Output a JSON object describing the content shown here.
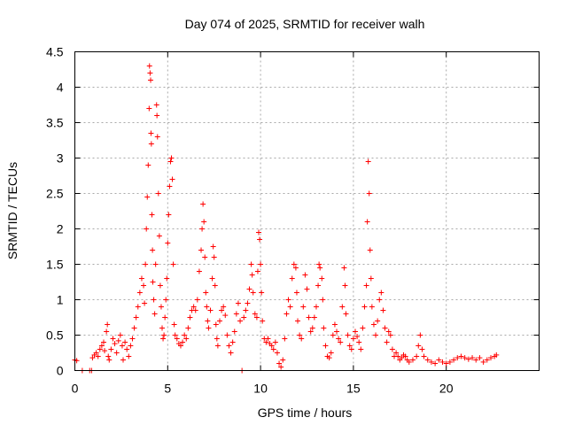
{
  "chart_data": {
    "type": "scatter",
    "title": "Day 074 of 2025, SRMTID for receiver walh",
    "xlabel": "GPS time / hours",
    "ylabel": "SRMTID / TECUs",
    "xlim": [
      0,
      25
    ],
    "ylim": [
      0,
      4.5
    ],
    "xticks": [
      0,
      5,
      10,
      15,
      20
    ],
    "xtick_labels": [
      "0",
      "5",
      "10",
      "15",
      "20"
    ],
    "yticks": [
      0,
      0.5,
      1,
      1.5,
      2,
      2.5,
      3,
      3.5,
      4,
      4.5
    ],
    "ytick_labels": [
      "0",
      "0.5",
      "1",
      "1.5",
      "2",
      "2.5",
      "3",
      "3.5",
      "4",
      "4.5"
    ],
    "grid": true,
    "marker": "+",
    "color": "#ff0000",
    "series": [
      {
        "name": "SRMTID",
        "points": [
          [
            0.0,
            0.15
          ],
          [
            0.1,
            0.14
          ],
          [
            0.4,
            0.0
          ],
          [
            0.8,
            0.0
          ],
          [
            0.9,
            0.0
          ],
          [
            0.95,
            0.18
          ],
          [
            1.05,
            0.22
          ],
          [
            1.15,
            0.25
          ],
          [
            1.25,
            0.2
          ],
          [
            1.35,
            0.3
          ],
          [
            1.45,
            0.35
          ],
          [
            1.55,
            0.4
          ],
          [
            1.6,
            0.28
          ],
          [
            1.7,
            0.55
          ],
          [
            1.75,
            0.65
          ],
          [
            1.8,
            0.2
          ],
          [
            1.85,
            0.15
          ],
          [
            1.95,
            0.3
          ],
          [
            2.05,
            0.45
          ],
          [
            2.15,
            0.38
          ],
          [
            2.25,
            0.25
          ],
          [
            2.35,
            0.42
          ],
          [
            2.45,
            0.5
          ],
          [
            2.55,
            0.35
          ],
          [
            2.6,
            0.15
          ],
          [
            2.7,
            0.4
          ],
          [
            2.8,
            0.3
          ],
          [
            2.9,
            0.2
          ],
          [
            3.0,
            0.35
          ],
          [
            3.1,
            0.45
          ],
          [
            3.2,
            0.6
          ],
          [
            3.3,
            0.75
          ],
          [
            3.4,
            0.9
          ],
          [
            3.5,
            1.1
          ],
          [
            3.6,
            1.3
          ],
          [
            3.7,
            1.2
          ],
          [
            3.75,
            0.95
          ],
          [
            3.8,
            1.5
          ],
          [
            3.85,
            2.0
          ],
          [
            3.9,
            2.45
          ],
          [
            3.95,
            2.9
          ],
          [
            4.0,
            3.7
          ],
          [
            4.02,
            4.3
          ],
          [
            4.05,
            4.2
          ],
          [
            4.08,
            4.1
          ],
          [
            4.1,
            3.35
          ],
          [
            4.12,
            3.2
          ],
          [
            4.15,
            2.2
          ],
          [
            4.18,
            1.7
          ],
          [
            4.2,
            1.25
          ],
          [
            4.25,
            1.0
          ],
          [
            4.3,
            0.8
          ],
          [
            4.35,
            1.5
          ],
          [
            4.4,
            3.75
          ],
          [
            4.42,
            3.6
          ],
          [
            4.45,
            3.3
          ],
          [
            4.5,
            2.5
          ],
          [
            4.55,
            1.9
          ],
          [
            4.6,
            1.2
          ],
          [
            4.65,
            0.9
          ],
          [
            4.7,
            0.6
          ],
          [
            4.75,
            0.45
          ],
          [
            4.8,
            0.5
          ],
          [
            4.85,
            0.75
          ],
          [
            4.9,
            1.0
          ],
          [
            4.95,
            1.3
          ],
          [
            5.0,
            1.8
          ],
          [
            5.05,
            2.2
          ],
          [
            5.1,
            2.6
          ],
          [
            5.15,
            2.95
          ],
          [
            5.2,
            3.0
          ],
          [
            5.25,
            2.7
          ],
          [
            5.3,
            1.5
          ],
          [
            5.35,
            0.65
          ],
          [
            5.4,
            0.5
          ],
          [
            5.5,
            0.45
          ],
          [
            5.6,
            0.38
          ],
          [
            5.7,
            0.35
          ],
          [
            5.8,
            0.4
          ],
          [
            5.9,
            0.5
          ],
          [
            6.0,
            0.45
          ],
          [
            6.1,
            0.6
          ],
          [
            6.2,
            0.75
          ],
          [
            6.3,
            0.85
          ],
          [
            6.4,
            0.9
          ],
          [
            6.5,
            0.85
          ],
          [
            6.6,
            1.0
          ],
          [
            6.7,
            1.4
          ],
          [
            6.8,
            1.7
          ],
          [
            6.85,
            2.0
          ],
          [
            6.9,
            2.35
          ],
          [
            6.95,
            2.1
          ],
          [
            7.0,
            1.6
          ],
          [
            7.05,
            1.1
          ],
          [
            7.1,
            0.9
          ],
          [
            7.15,
            0.7
          ],
          [
            7.2,
            0.6
          ],
          [
            7.3,
            0.85
          ],
          [
            7.4,
            1.3
          ],
          [
            7.45,
            1.75
          ],
          [
            7.5,
            1.6
          ],
          [
            7.55,
            1.2
          ],
          [
            7.6,
            0.65
          ],
          [
            7.65,
            0.45
          ],
          [
            7.7,
            0.35
          ],
          [
            7.8,
            0.7
          ],
          [
            7.9,
            0.85
          ],
          [
            8.0,
            0.9
          ],
          [
            8.1,
            0.78
          ],
          [
            8.2,
            0.5
          ],
          [
            8.3,
            0.35
          ],
          [
            8.4,
            0.25
          ],
          [
            8.5,
            0.4
          ],
          [
            8.6,
            0.55
          ],
          [
            8.7,
            0.8
          ],
          [
            8.8,
            0.95
          ],
          [
            8.9,
            0.7
          ],
          [
            9.0,
            0.0
          ],
          [
            9.1,
            0.75
          ],
          [
            9.2,
            0.85
          ],
          [
            9.3,
            0.95
          ],
          [
            9.4,
            1.15
          ],
          [
            9.5,
            1.5
          ],
          [
            9.55,
            1.35
          ],
          [
            9.6,
            1.1
          ],
          [
            9.7,
            0.8
          ],
          [
            9.8,
            0.75
          ],
          [
            9.85,
            1.4
          ],
          [
            9.9,
            1.95
          ],
          [
            9.95,
            1.85
          ],
          [
            10.0,
            1.5
          ],
          [
            10.05,
            1.1
          ],
          [
            10.1,
            0.7
          ],
          [
            10.2,
            0.45
          ],
          [
            10.3,
            0.4
          ],
          [
            10.4,
            0.45
          ],
          [
            10.5,
            0.38
          ],
          [
            10.6,
            0.35
          ],
          [
            10.7,
            0.3
          ],
          [
            10.8,
            0.4
          ],
          [
            10.9,
            0.25
          ],
          [
            11.0,
            0.1
          ],
          [
            11.1,
            0.05
          ],
          [
            11.2,
            0.15
          ],
          [
            11.3,
            0.45
          ],
          [
            11.4,
            0.8
          ],
          [
            11.5,
            1.0
          ],
          [
            11.6,
            0.9
          ],
          [
            11.7,
            1.3
          ],
          [
            11.8,
            1.5
          ],
          [
            11.9,
            1.45
          ],
          [
            11.95,
            1.1
          ],
          [
            12.0,
            0.7
          ],
          [
            12.1,
            0.5
          ],
          [
            12.2,
            0.45
          ],
          [
            12.3,
            0.9
          ],
          [
            12.4,
            1.35
          ],
          [
            12.5,
            1.15
          ],
          [
            12.6,
            0.75
          ],
          [
            12.7,
            0.55
          ],
          [
            12.8,
            0.6
          ],
          [
            12.9,
            0.75
          ],
          [
            13.0,
            0.9
          ],
          [
            13.1,
            1.2
          ],
          [
            13.15,
            1.5
          ],
          [
            13.2,
            1.45
          ],
          [
            13.3,
            1.3
          ],
          [
            13.35,
            1.0
          ],
          [
            13.4,
            0.6
          ],
          [
            13.5,
            0.35
          ],
          [
            13.6,
            0.2
          ],
          [
            13.7,
            0.18
          ],
          [
            13.8,
            0.25
          ],
          [
            13.9,
            0.5
          ],
          [
            14.0,
            0.65
          ],
          [
            14.1,
            0.55
          ],
          [
            14.2,
            0.45
          ],
          [
            14.3,
            0.4
          ],
          [
            14.4,
            0.9
          ],
          [
            14.5,
            1.45
          ],
          [
            14.55,
            1.2
          ],
          [
            14.6,
            0.8
          ],
          [
            14.7,
            0.5
          ],
          [
            14.8,
            0.35
          ],
          [
            14.9,
            0.3
          ],
          [
            15.0,
            0.45
          ],
          [
            15.1,
            0.55
          ],
          [
            15.2,
            0.48
          ],
          [
            15.3,
            0.4
          ],
          [
            15.4,
            0.3
          ],
          [
            15.5,
            0.6
          ],
          [
            15.6,
            0.9
          ],
          [
            15.7,
            1.2
          ],
          [
            15.75,
            2.1
          ],
          [
            15.8,
            2.95
          ],
          [
            15.85,
            2.5
          ],
          [
            15.9,
            1.7
          ],
          [
            15.95,
            1.3
          ],
          [
            16.0,
            0.9
          ],
          [
            16.1,
            0.65
          ],
          [
            16.2,
            0.5
          ],
          [
            16.3,
            0.7
          ],
          [
            16.4,
            1.0
          ],
          [
            16.5,
            1.1
          ],
          [
            16.6,
            0.85
          ],
          [
            16.7,
            0.6
          ],
          [
            16.8,
            0.4
          ],
          [
            16.9,
            0.55
          ],
          [
            17.0,
            0.5
          ],
          [
            17.1,
            0.3
          ],
          [
            17.2,
            0.2
          ],
          [
            17.3,
            0.25
          ],
          [
            17.4,
            0.2
          ],
          [
            17.5,
            0.15
          ],
          [
            17.6,
            0.18
          ],
          [
            17.7,
            0.22
          ],
          [
            17.8,
            0.2
          ],
          [
            17.9,
            0.15
          ],
          [
            18.0,
            0.12
          ],
          [
            18.2,
            0.15
          ],
          [
            18.4,
            0.2
          ],
          [
            18.5,
            0.35
          ],
          [
            18.6,
            0.5
          ],
          [
            18.7,
            0.3
          ],
          [
            18.8,
            0.2
          ],
          [
            19.0,
            0.15
          ],
          [
            19.2,
            0.12
          ],
          [
            19.4,
            0.1
          ],
          [
            19.6,
            0.15
          ],
          [
            19.8,
            0.12
          ],
          [
            20.0,
            0.1
          ],
          [
            20.2,
            0.12
          ],
          [
            20.4,
            0.15
          ],
          [
            20.6,
            0.18
          ],
          [
            20.8,
            0.2
          ],
          [
            21.0,
            0.18
          ],
          [
            21.2,
            0.16
          ],
          [
            21.4,
            0.18
          ],
          [
            21.6,
            0.15
          ],
          [
            21.8,
            0.18
          ],
          [
            22.0,
            0.12
          ],
          [
            22.2,
            0.15
          ],
          [
            22.4,
            0.18
          ],
          [
            22.6,
            0.2
          ],
          [
            22.7,
            0.22
          ]
        ]
      }
    ]
  }
}
